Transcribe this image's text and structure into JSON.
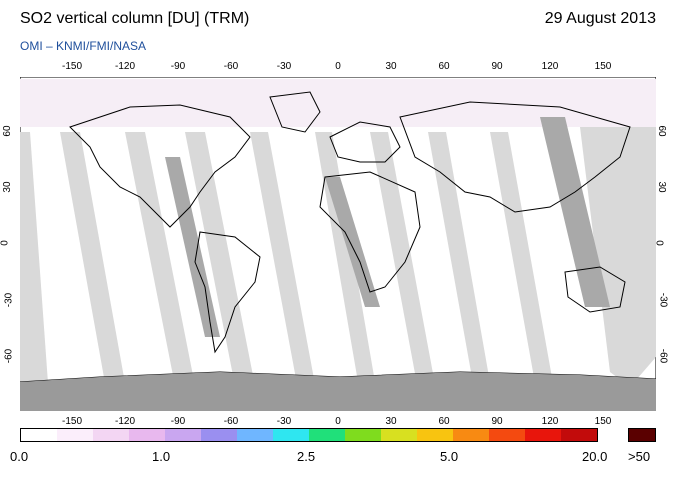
{
  "header": {
    "title": "SO2 vertical column [DU] (TRM)",
    "date": "29 August 2013",
    "credit": "OMI  –  KNMI/FMI/NASA"
  },
  "map": {
    "projection": "equirectangular",
    "lon_ticks": [
      "-150",
      "-120",
      "-90",
      "-60",
      "-30",
      "0",
      "30",
      "60",
      "90",
      "120",
      "150"
    ],
    "lat_ticks": [
      "60",
      "30",
      "0",
      "-30",
      "-60"
    ],
    "colors": {
      "background": "#ffffff",
      "land_outline": "#000000",
      "no_data_light": "#d9d9d9",
      "no_data_dark": "#a9a9a9",
      "antarctica": "#9a9a9a"
    }
  },
  "colorbar": {
    "labels": [
      "0.0",
      "1.0",
      "2.5",
      "5.0",
      "20.0"
    ],
    "overflow_label": ">50",
    "overflow_color": "#5a0000",
    "colors": [
      "#ffffff",
      "#fbeefb",
      "#f3d6f3",
      "#e8b8ee",
      "#c9a6f0",
      "#9a8ff0",
      "#6fb6ff",
      "#2fe6f0",
      "#20e07a",
      "#7fdc1e",
      "#d8e020",
      "#f8c410",
      "#f88a12",
      "#f44a10",
      "#e8150c",
      "#c20b0b"
    ]
  }
}
